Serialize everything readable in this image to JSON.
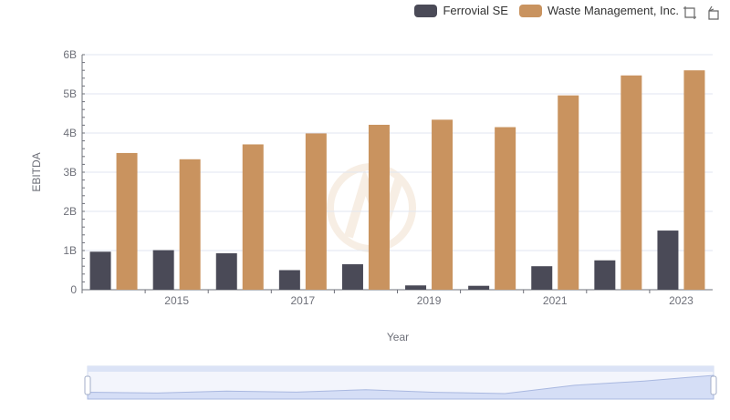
{
  "legend": {
    "items": [
      {
        "name": "Ferrovial SE",
        "color": "#4a4a57"
      },
      {
        "name": "Waste Management, Inc.",
        "color": "#c9935f"
      }
    ]
  },
  "toolbox": {
    "icons": [
      "zoom-icon",
      "restore-icon"
    ]
  },
  "chart_data": {
    "type": "bar",
    "title": "",
    "xlabel": "Year",
    "ylabel": "EBITDA",
    "categories": [
      "2014",
      "2015",
      "2016",
      "2017",
      "2018",
      "2019",
      "2020",
      "2021",
      "2022",
      "2023"
    ],
    "x_tick_labels": [
      "2015",
      "2017",
      "2019",
      "2021",
      "2023"
    ],
    "y_tick_labels": [
      "0",
      "1B",
      "2B",
      "3B",
      "4B",
      "5B",
      "6B"
    ],
    "ylim": [
      0,
      6000000000
    ],
    "grid": true,
    "legend_position": "top-right",
    "series": [
      {
        "name": "Ferrovial SE",
        "color": "#4a4a57",
        "values": [
          970000000,
          1010000000,
          930000000,
          500000000,
          650000000,
          110000000,
          100000000,
          600000000,
          750000000,
          1510000000
        ]
      },
      {
        "name": "Waste Management, Inc.",
        "color": "#c9935f",
        "values": [
          3490000000,
          3330000000,
          3710000000,
          3990000000,
          4210000000,
          4340000000,
          4150000000,
          4960000000,
          5470000000,
          5600000000
        ]
      }
    ],
    "data_zoom": {
      "start": 0,
      "end": 100
    }
  }
}
